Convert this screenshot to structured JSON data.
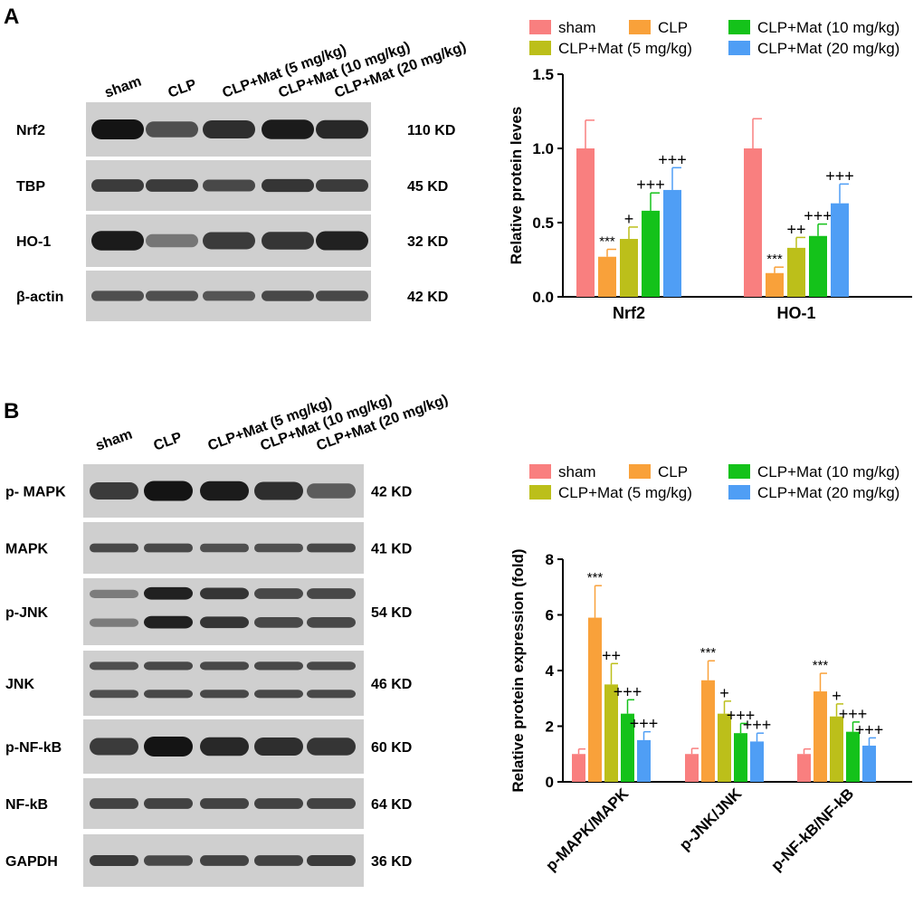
{
  "panels": [
    {
      "letter": "A",
      "lanes": [
        "sham",
        "CLP",
        "CLP+Mat (5 mg/kg)",
        "CLP+Mat (10 mg/kg)",
        "CLP+Mat (20 mg/kg)"
      ],
      "blots": [
        {
          "name": "Nrf2",
          "size": "110 KD",
          "intensity": [
            1.0,
            0.55,
            0.8,
            0.95,
            0.85
          ]
        },
        {
          "name": "TBP",
          "size": "45 KD",
          "intensity": [
            0.7,
            0.7,
            0.6,
            0.75,
            0.7
          ]
        },
        {
          "name": "HO-1",
          "size": "32 KD",
          "intensity": [
            0.95,
            0.25,
            0.7,
            0.75,
            0.9
          ]
        },
        {
          "name": "β-actin",
          "size": "42 KD",
          "intensity": [
            0.55,
            0.55,
            0.5,
            0.6,
            0.6
          ]
        }
      ]
    },
    {
      "letter": "B",
      "lanes": [
        "sham",
        "CLP",
        "CLP+Mat (5 mg/kg)",
        "CLP+Mat (10 mg/kg)",
        "CLP+Mat (20 mg/kg)"
      ],
      "blots": [
        {
          "name": "p- MAPK",
          "size": "42 KD",
          "intensity": [
            0.7,
            1.0,
            0.95,
            0.8,
            0.45
          ]
        },
        {
          "name": "MAPK",
          "size": "41 KD",
          "intensity": [
            0.6,
            0.6,
            0.55,
            0.55,
            0.6
          ]
        },
        {
          "name": "p-JNK",
          "size": "54 KD",
          "intensity": [
            0.2,
            0.9,
            0.75,
            0.6,
            0.6
          ]
        },
        {
          "name": "JNK",
          "size": "46 KD",
          "intensity": [
            0.55,
            0.6,
            0.6,
            0.6,
            0.6
          ]
        },
        {
          "name": "p-NF-kB",
          "size": "60 KD",
          "intensity": [
            0.7,
            1.0,
            0.85,
            0.8,
            0.75
          ]
        },
        {
          "name": "NF-kB",
          "size": "64 KD",
          "intensity": [
            0.65,
            0.65,
            0.65,
            0.65,
            0.65
          ]
        },
        {
          "name": "GAPDH",
          "size": "36 KD",
          "intensity": [
            0.7,
            0.6,
            0.65,
            0.65,
            0.7
          ]
        }
      ]
    }
  ],
  "colors": {
    "sham": "#f97f7f",
    "CLP": "#f9a13a",
    "CLP+Mat (5 mg/kg)": "#bcbf1a",
    "CLP+Mat (10 mg/kg)": "#14c21a",
    "CLP+Mat (20 mg/kg)": "#4f9ef5"
  },
  "chart_data": [
    {
      "type": "bar",
      "categories": [
        "Nrf2",
        "HO-1"
      ],
      "ylabel": "Relative protein leves",
      "ylim": [
        0,
        1.5
      ],
      "yticks": [
        "0.0",
        "0.5",
        "1.0",
        "1.5"
      ],
      "legend": [
        "sham",
        "CLP",
        "CLP+Mat (10 mg/kg)",
        "CLP+Mat (5 mg/kg)",
        "CLP+Mat (20 mg/kg)"
      ],
      "series": [
        {
          "name": "sham",
          "values": [
            1.0,
            1.0
          ],
          "errors": [
            0.19,
            0.2
          ],
          "labels": [
            "",
            ""
          ]
        },
        {
          "name": "CLP",
          "values": [
            0.27,
            0.16
          ],
          "errors": [
            0.05,
            0.04
          ],
          "labels": [
            "***",
            "***"
          ]
        },
        {
          "name": "CLP+Mat (5 mg/kg)",
          "values": [
            0.39,
            0.33
          ],
          "errors": [
            0.08,
            0.07
          ],
          "labels": [
            "+",
            "++"
          ]
        },
        {
          "name": "CLP+Mat (10 mg/kg)",
          "values": [
            0.58,
            0.41
          ],
          "errors": [
            0.12,
            0.08
          ],
          "labels": [
            "+++",
            "+++"
          ]
        },
        {
          "name": "CLP+Mat (20 mg/kg)",
          "values": [
            0.72,
            0.63
          ],
          "errors": [
            0.15,
            0.13
          ],
          "labels": [
            "+++",
            "+++"
          ]
        }
      ]
    },
    {
      "type": "bar",
      "categories": [
        "p-MAPK/MAPK",
        "p-JNK/JNK",
        "p-NF-kB/NF-kB"
      ],
      "ylabel": "Relative protein expression (fold)",
      "ylim": [
        0,
        8
      ],
      "yticks": [
        "0",
        "2",
        "4",
        "6",
        "8"
      ],
      "legend": [
        "sham",
        "CLP",
        "CLP+Mat (10 mg/kg)",
        "CLP+Mat (5 mg/kg)",
        "CLP+Mat (20 mg/kg)"
      ],
      "series": [
        {
          "name": "sham",
          "values": [
            1.0,
            1.0,
            1.0
          ],
          "errors": [
            0.18,
            0.2,
            0.18
          ],
          "labels": [
            "",
            "",
            ""
          ]
        },
        {
          "name": "CLP",
          "values": [
            5.9,
            3.65,
            3.25
          ],
          "errors": [
            1.15,
            0.7,
            0.65
          ],
          "labels": [
            "***",
            "***",
            "***"
          ]
        },
        {
          "name": "CLP+Mat (5 mg/kg)",
          "values": [
            3.5,
            2.45,
            2.35
          ],
          "errors": [
            0.75,
            0.45,
            0.45
          ],
          "labels": [
            "++",
            "+",
            "+"
          ]
        },
        {
          "name": "CLP+Mat (10 mg/kg)",
          "values": [
            2.45,
            1.75,
            1.8
          ],
          "errors": [
            0.5,
            0.35,
            0.35
          ],
          "labels": [
            "+++",
            "+++",
            "+++"
          ]
        },
        {
          "name": "CLP+Mat (20 mg/kg)",
          "values": [
            1.5,
            1.45,
            1.3
          ],
          "errors": [
            0.3,
            0.3,
            0.28
          ],
          "labels": [
            "+++",
            "+++",
            "+++"
          ]
        }
      ]
    }
  ]
}
